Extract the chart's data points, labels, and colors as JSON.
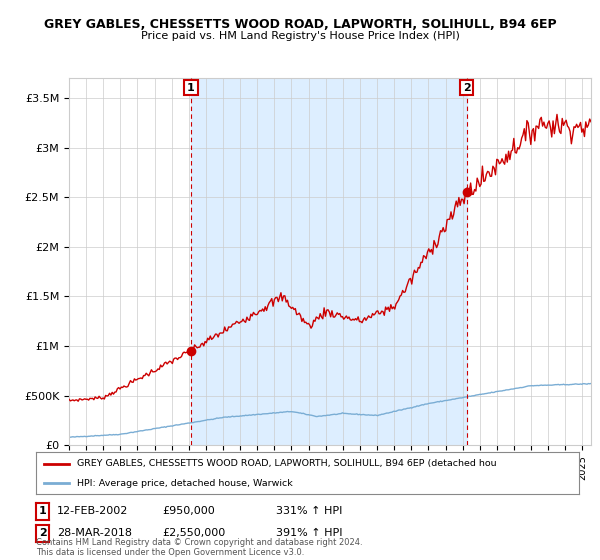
{
  "title1": "GREY GABLES, CHESSETTS WOOD ROAD, LAPWORTH, SOLIHULL, B94 6EP",
  "title2": "Price paid vs. HM Land Registry's House Price Index (HPI)",
  "ylim": [
    0,
    3700000
  ],
  "yticks": [
    0,
    500000,
    1000000,
    1500000,
    2000000,
    2500000,
    3000000,
    3500000
  ],
  "ytick_labels": [
    "£0",
    "£500K",
    "£1M",
    "£1.5M",
    "£2M",
    "£2.5M",
    "£3M",
    "£3.5M"
  ],
  "sale1_date": 2002.12,
  "sale1_price": 950000,
  "sale2_date": 2018.24,
  "sale2_price": 2550000,
  "red_line_color": "#cc0000",
  "blue_line_color": "#7aadd4",
  "shade_color": "#ddeeff",
  "background_color": "#ffffff",
  "grid_color": "#cccccc",
  "legend_label_red": "GREY GABLES, CHESSETTS WOOD ROAD, LAPWORTH, SOLIHULL, B94 6EP (detached hou",
  "legend_label_blue": "HPI: Average price, detached house, Warwick",
  "table_row1": [
    "1",
    "12-FEB-2002",
    "£950,000",
    "331% ↑ HPI"
  ],
  "table_row2": [
    "2",
    "28-MAR-2018",
    "£2,550,000",
    "391% ↑ HPI"
  ],
  "footer": "Contains HM Land Registry data © Crown copyright and database right 2024.\nThis data is licensed under the Open Government Licence v3.0.",
  "xmin": 1995,
  "xmax": 2025.5
}
